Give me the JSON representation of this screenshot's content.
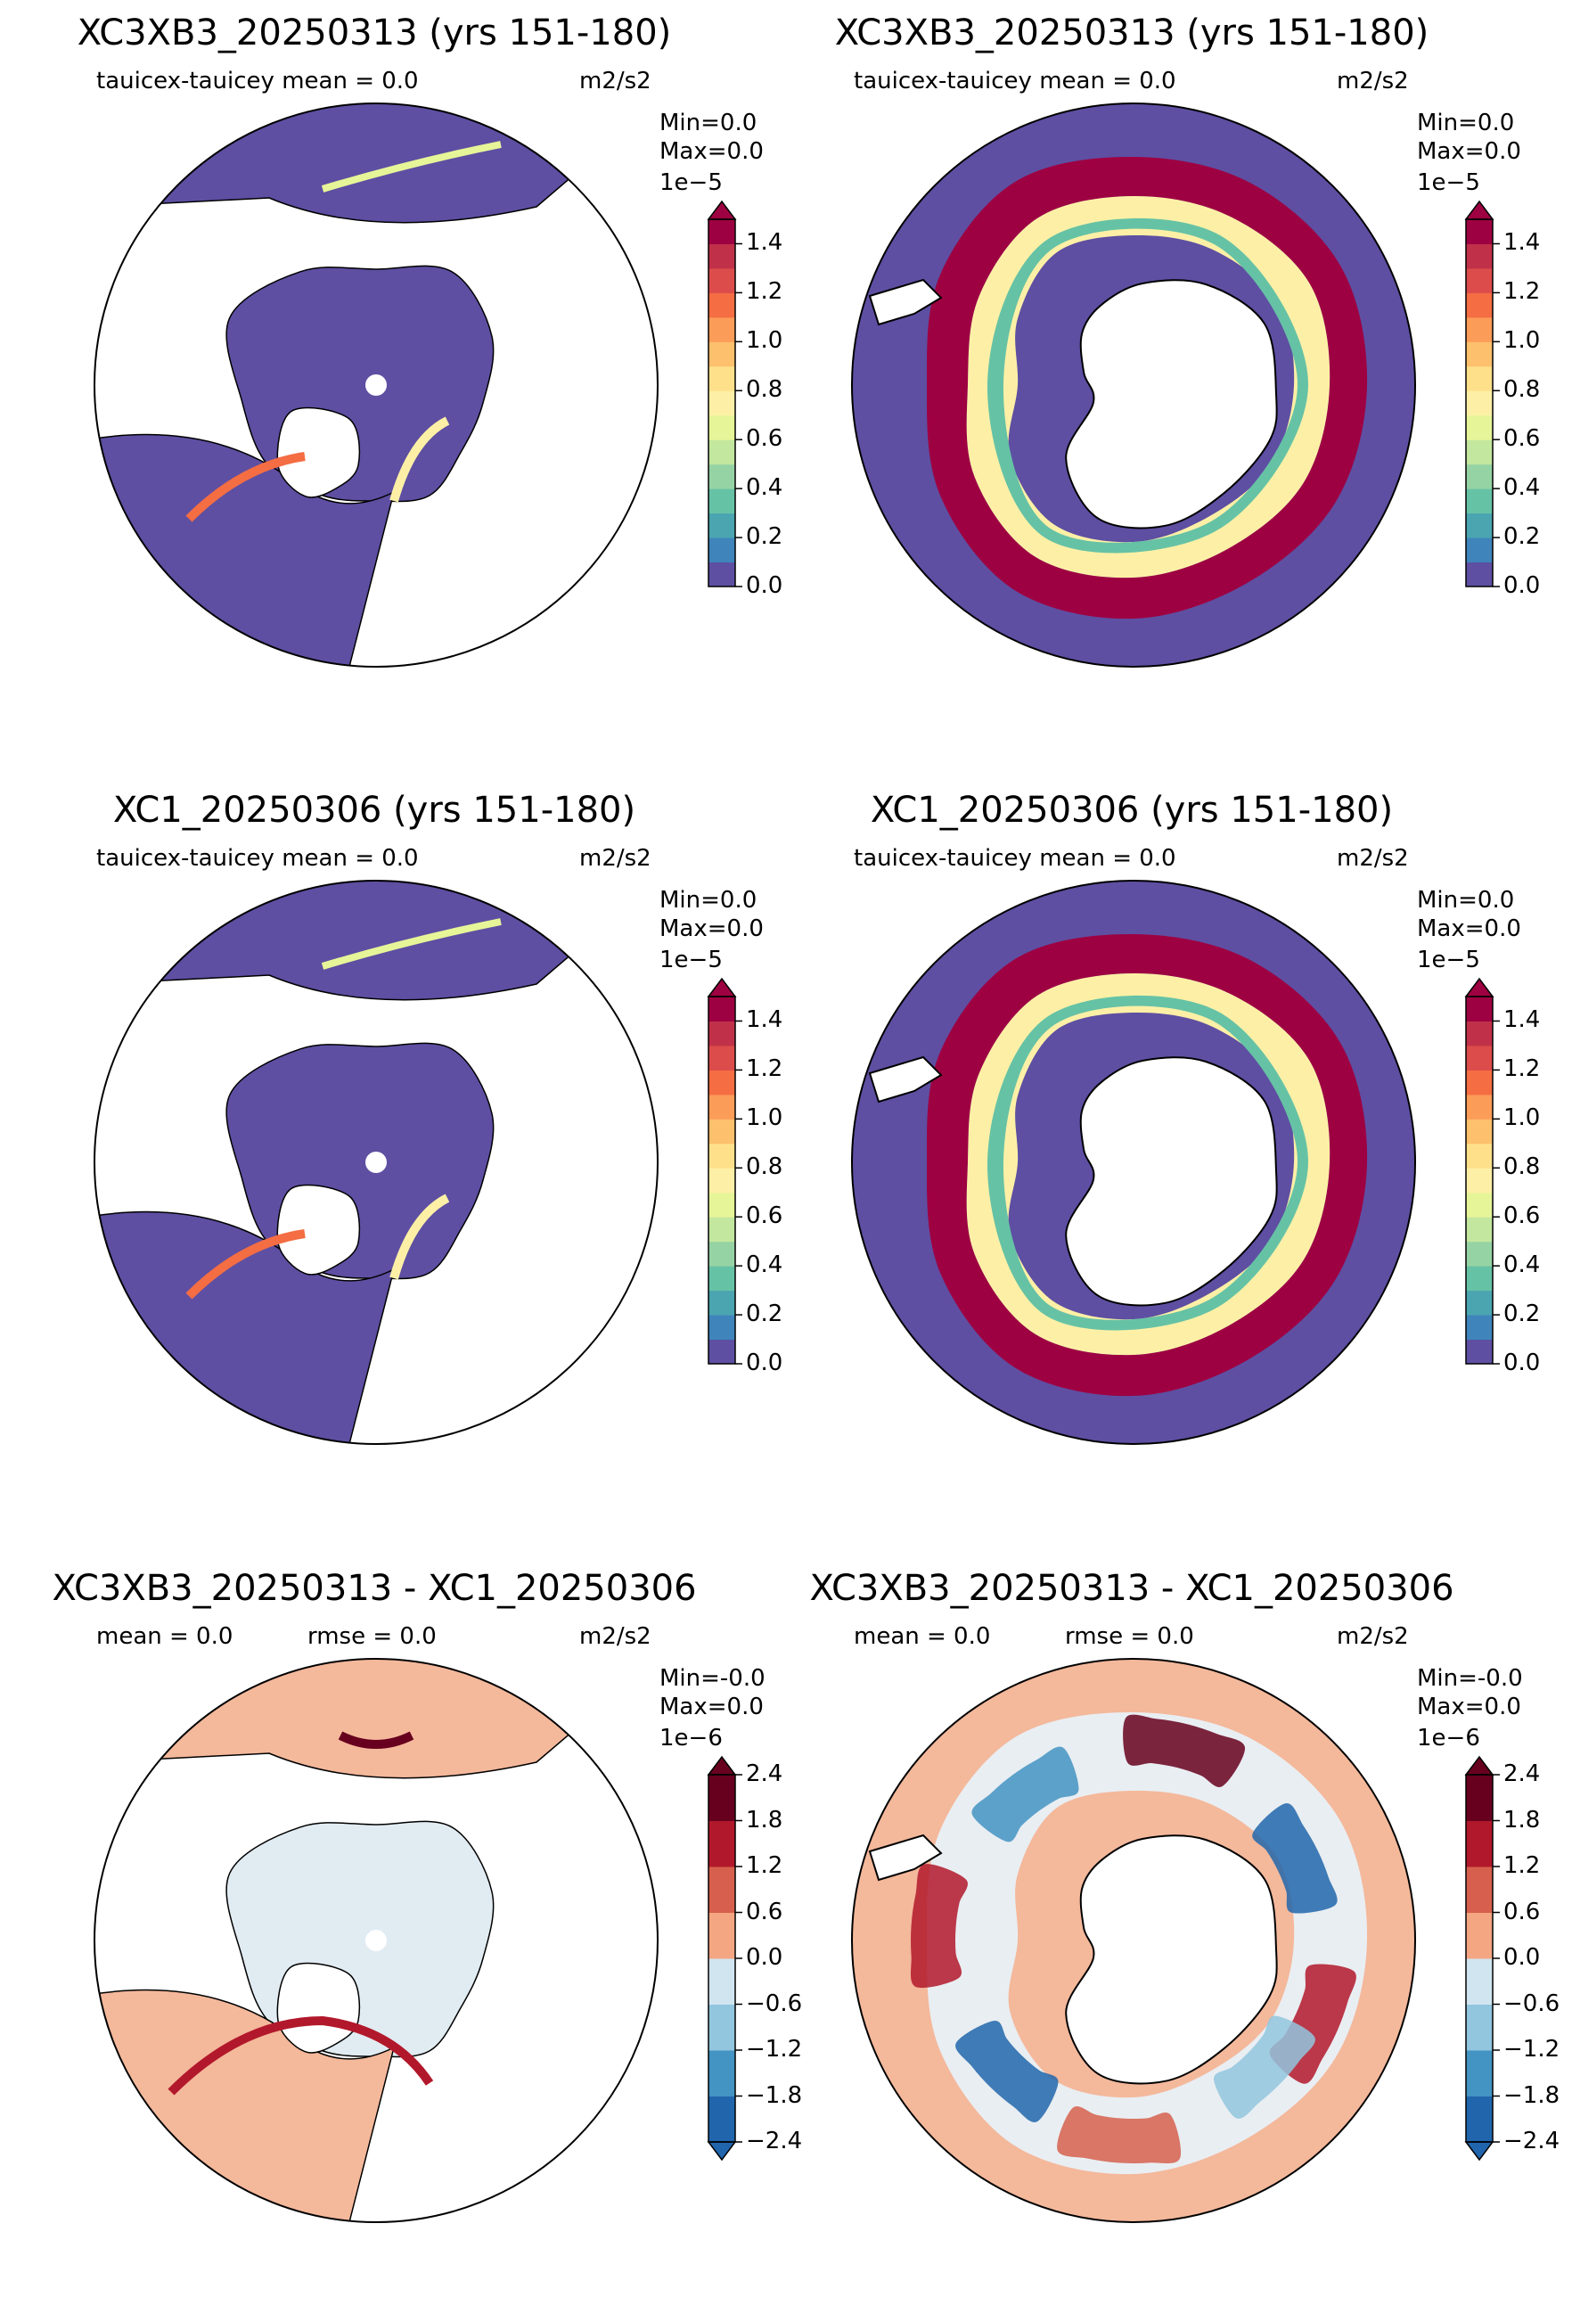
{
  "units": "m2/s2",
  "chart_data": [
    {
      "type": "heatmap",
      "title": "XC3XB3_20250313 (yrs 151-180)",
      "left_label": "tauicex-tauicey  mean = 0.0",
      "middle_label": "",
      "units": "m2/s2",
      "hemisphere": "north",
      "min_text": "Min=0.0",
      "max_text": "Max=0.0",
      "scale_exp": "1e−5",
      "colorbar": {
        "ticks": [
          "0.0",
          "0.2",
          "0.4",
          "0.6",
          "0.8",
          "1.0",
          "1.2",
          "1.4"
        ],
        "vmin": 0.0,
        "vmax": 1.5,
        "extend": "max",
        "colors": [
          "#5e4fa2",
          "#3f84bb",
          "#4aa5b1",
          "#66c2a5",
          "#96d3a4",
          "#c3e79e",
          "#e6f598",
          "#fdf0a6",
          "#fee08b",
          "#fdc06c",
          "#fb9c59",
          "#f46d43",
          "#dc4c4b",
          "#c03149",
          "#9e0142"
        ]
      }
    },
    {
      "type": "heatmap",
      "title": "XC3XB3_20250313 (yrs 151-180)",
      "left_label": "tauicex-tauicey  mean = 0.0",
      "middle_label": "",
      "units": "m2/s2",
      "hemisphere": "south",
      "min_text": "Min=0.0",
      "max_text": " Max=0.0",
      "scale_exp": "1e−5",
      "colorbar": {
        "ticks": [
          "0.0",
          "0.2",
          "0.4",
          "0.6",
          "0.8",
          "1.0",
          "1.2",
          "1.4"
        ],
        "vmin": 0.0,
        "vmax": 1.5,
        "extend": "max",
        "colors": [
          "#5e4fa2",
          "#3f84bb",
          "#4aa5b1",
          "#66c2a5",
          "#96d3a4",
          "#c3e79e",
          "#e6f598",
          "#fdf0a6",
          "#fee08b",
          "#fdc06c",
          "#fb9c59",
          "#f46d43",
          "#dc4c4b",
          "#c03149",
          "#9e0142"
        ]
      }
    },
    {
      "type": "heatmap",
      "title": "XC1_20250306 (yrs 151-180)",
      "left_label": "tauicex-tauicey  mean = 0.0",
      "middle_label": "",
      "units": "m2/s2",
      "hemisphere": "north",
      "min_text": "Min=0.0",
      "max_text": " Max=0.0",
      "scale_exp": "1e−5",
      "colorbar": {
        "ticks": [
          "0.0",
          "0.2",
          "0.4",
          "0.6",
          "0.8",
          "1.0",
          "1.2",
          "1.4"
        ],
        "vmin": 0.0,
        "vmax": 1.5,
        "extend": "max",
        "colors": [
          "#5e4fa2",
          "#3f84bb",
          "#4aa5b1",
          "#66c2a5",
          "#96d3a4",
          "#c3e79e",
          "#e6f598",
          "#fdf0a6",
          "#fee08b",
          "#fdc06c",
          "#fb9c59",
          "#f46d43",
          "#dc4c4b",
          "#c03149",
          "#9e0142"
        ]
      }
    },
    {
      "type": "heatmap",
      "title": "XC1_20250306 (yrs 151-180)",
      "left_label": "tauicex-tauicey  mean = 0.0",
      "middle_label": "",
      "units": "m2/s2",
      "hemisphere": "south",
      "min_text": "Min=0.0",
      "max_text": " Max=0.0",
      "scale_exp": "1e−5",
      "colorbar": {
        "ticks": [
          "0.0",
          "0.2",
          "0.4",
          "0.6",
          "0.8",
          "1.0",
          "1.2",
          "1.4"
        ],
        "vmin": 0.0,
        "vmax": 1.5,
        "extend": "max",
        "colors": [
          "#5e4fa2",
          "#3f84bb",
          "#4aa5b1",
          "#66c2a5",
          "#96d3a4",
          "#c3e79e",
          "#e6f598",
          "#fdf0a6",
          "#fee08b",
          "#fdc06c",
          "#fb9c59",
          "#f46d43",
          "#dc4c4b",
          "#c03149",
          "#9e0142"
        ]
      }
    },
    {
      "type": "heatmap",
      "title": "XC3XB3_20250313 - XC1_20250306",
      "left_label": "mean = 0.0",
      "middle_label": "rmse = 0.0",
      "units": "m2/s2",
      "hemisphere": "north",
      "min_text": "Min=-0.0",
      "max_text": "Max=0.0",
      "scale_exp": "1e−6",
      "colorbar": {
        "ticks": [
          "−2.4",
          "−1.8",
          "−1.2",
          "−0.6",
          "0.0",
          "0.6",
          "1.2",
          "1.8",
          "2.4"
        ],
        "vmin": -2.4,
        "vmax": 2.4,
        "extend": "both",
        "colors": [
          "#2166ac",
          "#4393c3",
          "#92c5de",
          "#d1e5f0",
          "#f4a582",
          "#d6604d",
          "#b2182b",
          "#67001f"
        ]
      }
    },
    {
      "type": "heatmap",
      "title": "XC3XB3_20250313 - XC1_20250306",
      "left_label": "mean = 0.0",
      "middle_label": "rmse = 0.0",
      "units": "m2/s2",
      "hemisphere": "south",
      "min_text": "Min=-0.0",
      "max_text": "Max=0.0",
      "scale_exp": "1e−6",
      "colorbar": {
        "ticks": [
          "−2.4",
          "−1.8",
          "−1.2",
          "−0.6",
          "0.0",
          "0.6",
          "1.2",
          "1.8",
          "2.4"
        ],
        "vmin": -2.4,
        "vmax": 2.4,
        "extend": "both",
        "colors": [
          "#2166ac",
          "#4393c3",
          "#92c5de",
          "#d1e5f0",
          "#f4a582",
          "#d6604d",
          "#b2182b",
          "#67001f"
        ]
      }
    }
  ]
}
